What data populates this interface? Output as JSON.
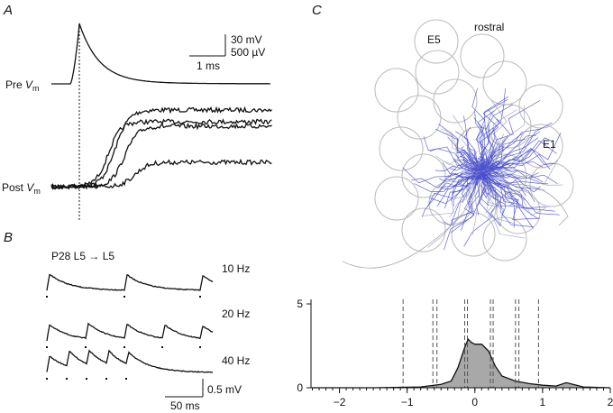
{
  "labels": {
    "panel_a": "A",
    "panel_b": "B",
    "panel_c": "C",
    "scale_a_v1": "30 mV",
    "scale_a_v2": "500 µV",
    "scale_a_t": "1 ms",
    "pre": "Pre",
    "post": "Post",
    "vm_var": "V",
    "vm_sub": "m",
    "pair": "P28  L5 → L5",
    "f10": "10 Hz",
    "f20": "20 Hz",
    "f40": "40 Hz",
    "scale_b_t": "50 ms",
    "scale_b_v": "0.5 mV",
    "e5": "E5",
    "rostral": "rostral",
    "e1": "E1"
  },
  "chart_data": {
    "type": "area",
    "color": "#a8a8a8",
    "x": [
      -2.4,
      -1.5,
      -0.8,
      -0.5,
      -0.35,
      -0.25,
      -0.15,
      -0.1,
      -0.05,
      0,
      0.1,
      0.2,
      0.3,
      0.4,
      0.6,
      0.8,
      1.0,
      1.2,
      1.35,
      1.45,
      1.6,
      2
    ],
    "density": [
      0,
      0,
      0.05,
      0.2,
      0.4,
      1.2,
      2.4,
      2.9,
      2.7,
      2.6,
      2.6,
      2.2,
      1.3,
      0.7,
      0.4,
      0.25,
      0.15,
      0.1,
      0.3,
      0.2,
      0.05,
      0
    ],
    "vlines": [
      -1.06,
      -0.62,
      -0.56,
      -0.15,
      -0.11,
      0.23,
      0.27,
      0.6,
      0.65,
      0.94
    ],
    "xlim": [
      -2.42,
      2
    ],
    "ylim": [
      0,
      5.27
    ],
    "xticks": [
      {
        "value": -2,
        "label": "−2"
      },
      {
        "value": -1,
        "label": "−1"
      },
      0,
      1,
      2
    ],
    "yticks": [
      0,
      5
    ]
  }
}
